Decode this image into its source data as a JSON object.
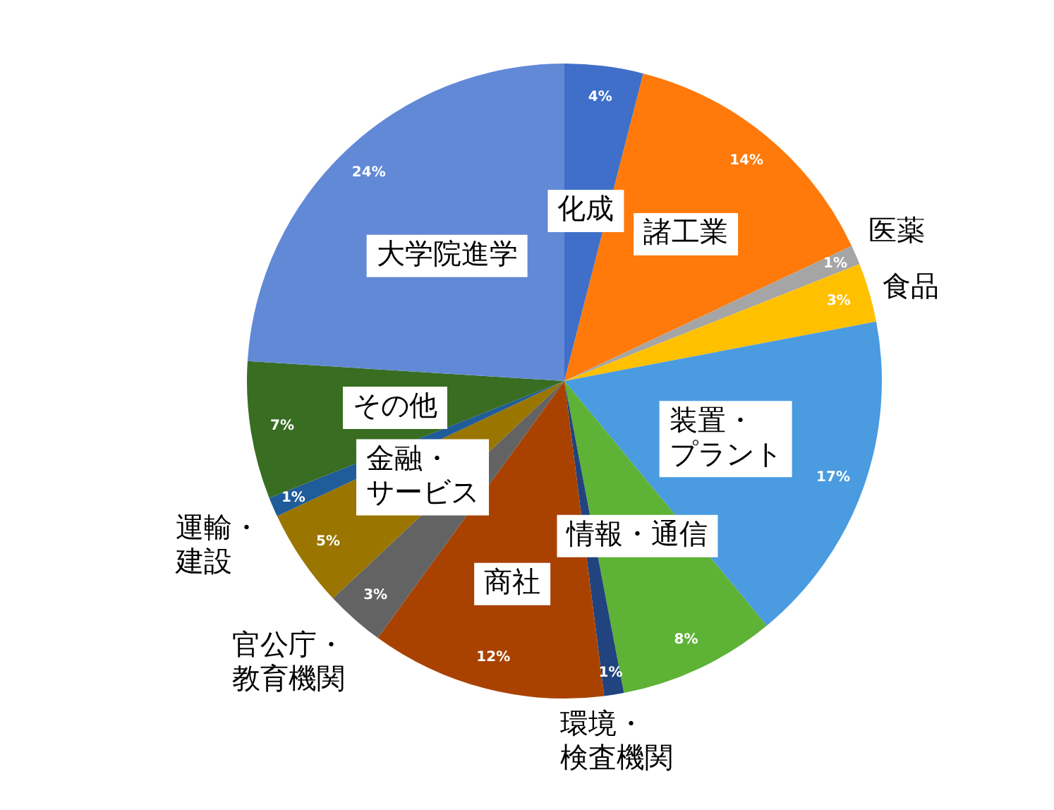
{
  "chart_data": {
    "type": "pie",
    "categories": [
      "化成",
      "諸工業",
      "医薬",
      "食品",
      "装置・プラント",
      "情報・通信",
      "環境・検査機関",
      "商社",
      "官公庁・教育機関",
      "金融・サービス",
      "運輸・建設",
      "その他",
      "大学院進学"
    ],
    "values": [
      4,
      14,
      1,
      3,
      17,
      8,
      1,
      12,
      3,
      5,
      1,
      7,
      24
    ],
    "value_labels": [
      "4%",
      "14%",
      "1%",
      "3%",
      "17%",
      "8%",
      "1%",
      "12%",
      "3%",
      "5%",
      "1%",
      "7%",
      "24%"
    ],
    "colors": [
      "#3f6fc8",
      "#ff7a0a",
      "#a5a5a5",
      "#ffc000",
      "#4a9be0",
      "#5eb236",
      "#21437e",
      "#a94200",
      "#636363",
      "#9a7500",
      "#1f5c99",
      "#386d22",
      "#6289d6"
    ]
  }
}
